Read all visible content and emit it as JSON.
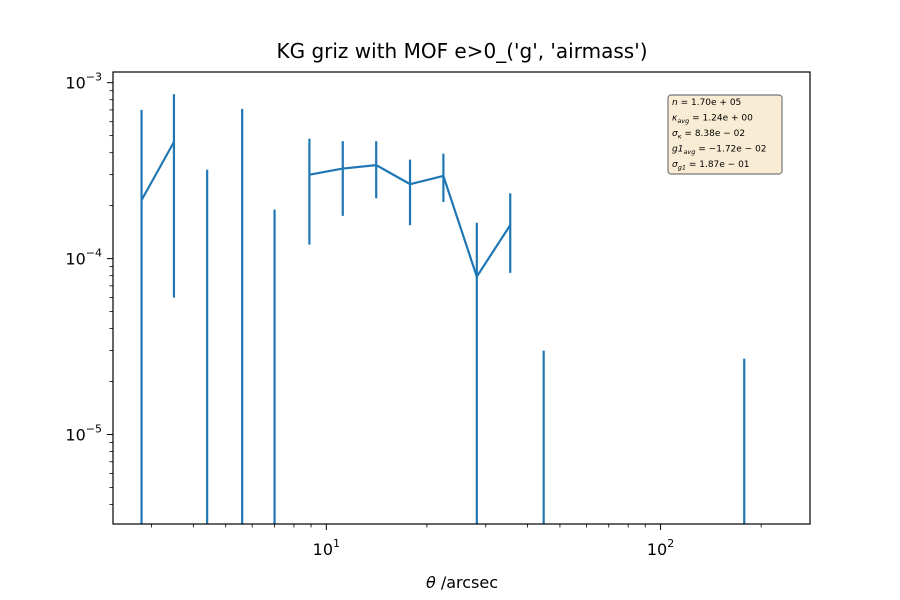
{
  "chart_data": {
    "type": "line",
    "title": "KG griz with MOF e>0_('g', 'airmass')",
    "xlabel_symbol": "θ",
    "xlabel_text": " /arcsec",
    "ylabel": "",
    "xscale": "log",
    "yscale": "log",
    "xlim": [
      2.3,
      280
    ],
    "ylim": [
      3.1e-06,
      0.00115
    ],
    "grid": false,
    "x_ticks": [
      {
        "value": 10,
        "base": "10",
        "exp": "1"
      },
      {
        "value": 100,
        "base": "10",
        "exp": "2"
      }
    ],
    "y_ticks": [
      {
        "value": 1e-05,
        "base": "10",
        "exp": "−5"
      },
      {
        "value": 0.0001,
        "base": "10",
        "exp": "−4"
      },
      {
        "value": 0.001,
        "base": "10",
        "exp": "−3"
      }
    ],
    "line_color": "#1f77b4",
    "series": [
      {
        "x": [
          2.8,
          3.5,
          4.4,
          5.6,
          7.0,
          8.9,
          11.2,
          14.1,
          17.8,
          22.4,
          28.2,
          35.5,
          44.7,
          178
        ],
        "y": [
          0.000215,
          0.00046,
          null,
          null,
          null,
          0.0003,
          0.000325,
          0.00034,
          0.000265,
          0.000295,
          7.9e-05,
          0.000155,
          null,
          null
        ],
        "y_err_low": [
          3.1e-06,
          6e-05,
          3.1e-06,
          3.1e-06,
          3.1e-06,
          0.00012,
          0.000175,
          0.00022,
          0.000155,
          0.00021,
          3.1e-06,
          8.3e-05,
          3.1e-06,
          3.1e-06
        ],
        "y_err_high": [
          0.0007,
          0.00086,
          0.00032,
          0.00071,
          0.00019,
          0.00048,
          0.000465,
          0.000465,
          0.000365,
          0.000395,
          0.00016,
          0.000235,
          3e-05,
          2.7e-05
        ]
      }
    ],
    "annotation_box": {
      "placement": "top-right",
      "lines": [
        {
          "sym": "n",
          "sub": "",
          "val": " = 1.70e + 05"
        },
        {
          "sym": "κ",
          "sub": "avg",
          "val": " = 1.24e + 00"
        },
        {
          "sym": "σ",
          "sub": "κ",
          "val": " = 8.38e − 02"
        },
        {
          "sym": "g1",
          "sub": "avg",
          "val": " = −1.72e − 02"
        },
        {
          "sym": "σ",
          "sub": "g1",
          "val": " = 1.87e − 01"
        }
      ]
    }
  }
}
